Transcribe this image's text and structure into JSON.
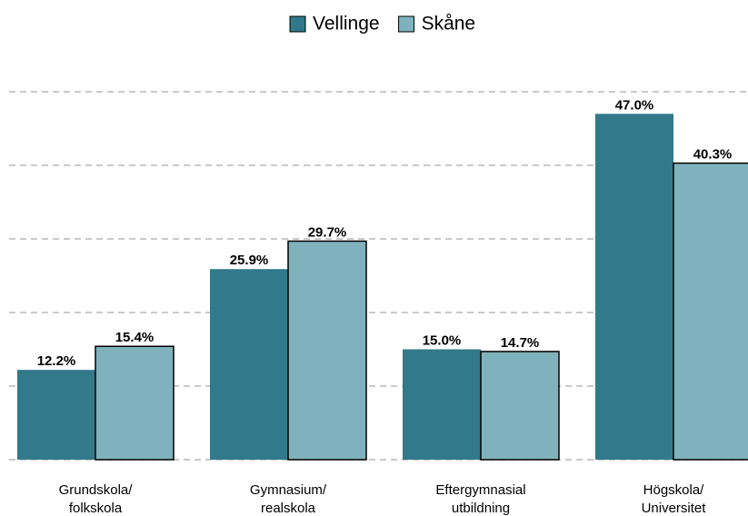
{
  "chart_data": {
    "type": "grouped_bar",
    "categories": [
      [
        "Grundskola/",
        "folkskola"
      ],
      [
        "Gymnasium/",
        "realskola"
      ],
      [
        "Eftergymnasial",
        "utbildning"
      ],
      [
        "Högskola/",
        "Universitet"
      ]
    ],
    "series": [
      {
        "name": "Vellinge",
        "color": "#31798b",
        "values": [
          12.2,
          25.9,
          15.0,
          47.0
        ],
        "value_labels": [
          "12.2%",
          "25.9%",
          "15.0%",
          "47.0%"
        ]
      },
      {
        "name": "Skåne",
        "color": "#7fb2bc",
        "values": [
          15.4,
          29.7,
          14.7,
          40.3
        ],
        "value_labels": [
          "15.4%",
          "29.7%",
          "14.7%",
          "40.3%"
        ]
      }
    ],
    "ylim": [
      0,
      50
    ],
    "yticks": [
      0,
      10,
      20,
      30,
      40,
      50
    ],
    "ytick_labels": false,
    "grid": true,
    "legend": "top"
  }
}
